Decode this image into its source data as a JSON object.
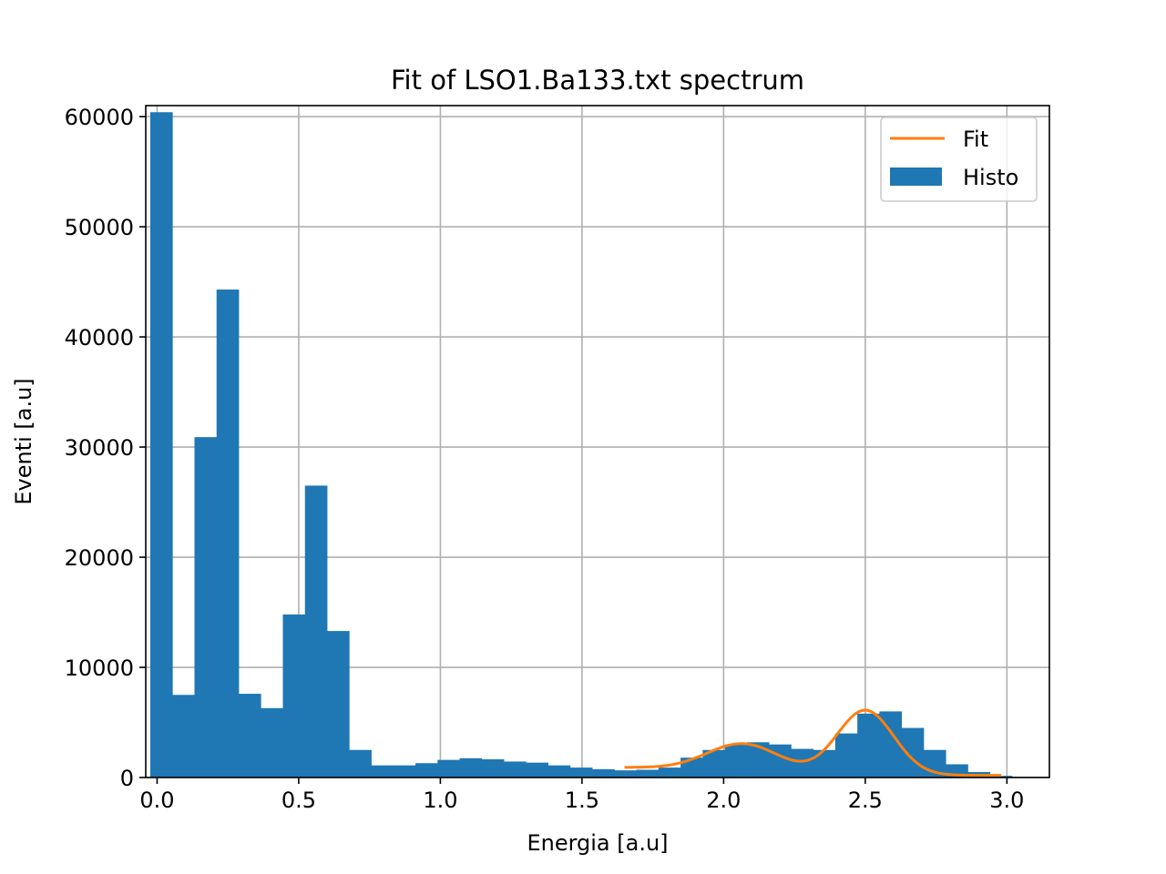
{
  "chart_data": {
    "type": "bar",
    "title": "Fit of LSO1.Ba133.txt spectrum",
    "xlabel": "Energia [a.u]",
    "ylabel": "Eventi [a.u]",
    "xlim": [
      -0.04,
      3.15
    ],
    "ylim": [
      0,
      61000
    ],
    "grid": true,
    "legend_position": "top-right",
    "x_ticks": [
      0.0,
      0.5,
      1.0,
      1.5,
      2.0,
      2.5,
      3.0
    ],
    "x_tick_labels": [
      "0.0",
      "0.5",
      "1.0",
      "1.5",
      "2.0",
      "2.5",
      "3.0"
    ],
    "y_ticks": [
      0,
      10000,
      20000,
      30000,
      40000,
      50000,
      60000
    ],
    "y_tick_labels": [
      "0",
      "10000",
      "20000",
      "30000",
      "40000",
      "50000",
      "60000"
    ],
    "histogram": {
      "name": "Histo",
      "color": "#1f77b4",
      "bin_edges": [
        -0.024,
        0.054,
        0.132,
        0.21,
        0.288,
        0.366,
        0.444,
        0.522,
        0.6,
        0.678,
        0.756,
        0.834,
        0.912,
        0.99,
        1.068,
        1.146,
        1.224,
        1.302,
        1.38,
        1.458,
        1.536,
        1.614,
        1.692,
        1.77,
        1.848,
        1.926,
        2.004,
        2.082,
        2.16,
        2.238,
        2.316,
        2.394,
        2.472,
        2.55,
        2.628,
        2.706,
        2.784,
        2.862,
        2.94,
        3.018
      ],
      "counts": [
        60400,
        7500,
        30900,
        44300,
        7600,
        6300,
        14800,
        26500,
        13300,
        2500,
        1100,
        1100,
        1300,
        1600,
        1750,
        1650,
        1450,
        1350,
        1100,
        900,
        750,
        650,
        700,
        900,
        1800,
        2500,
        3000,
        3200,
        3000,
        2600,
        2500,
        4000,
        5800,
        6000,
        4500,
        2500,
        1200,
        500,
        150
      ]
    },
    "fit": {
      "name": "Fit",
      "color": "#ff7f0e",
      "x_start": 1.65,
      "x_end": 2.98,
      "baseline": 200,
      "components": [
        {
          "amplitude": 700,
          "center": 1.65,
          "sigma": 0.25
        },
        {
          "amplitude": 2700,
          "center": 2.07,
          "sigma": 0.13
        },
        {
          "amplitude": 5900,
          "center": 2.5,
          "sigma": 0.1
        }
      ]
    }
  }
}
